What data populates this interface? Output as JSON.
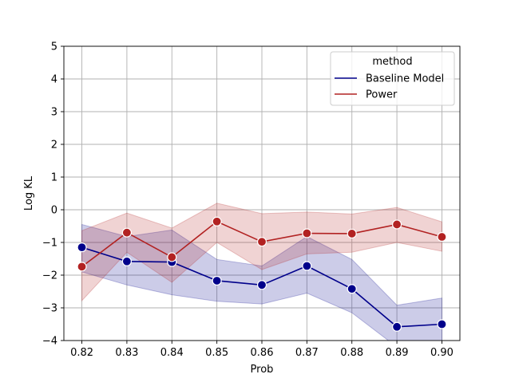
{
  "chart_data": {
    "type": "line",
    "title": "",
    "xlabel": "Prob",
    "ylabel": "Log KL",
    "x": [
      0.82,
      0.83,
      0.84,
      0.85,
      0.86,
      0.87,
      0.88,
      0.89,
      0.9
    ],
    "x_tick_labels": [
      "0.82",
      "0.83",
      "0.84",
      "0.85",
      "0.86",
      "0.87",
      "0.88",
      "0.89",
      "0.90"
    ],
    "xlim": [
      0.816,
      0.904
    ],
    "ylim": [
      -4,
      5
    ],
    "y_ticks": [
      -4,
      -3,
      -2,
      -1,
      0,
      1,
      2,
      3,
      4,
      5
    ],
    "y_tick_labels": [
      "−4",
      "−3",
      "−2",
      "−1",
      "0",
      "1",
      "2",
      "3",
      "4",
      "5"
    ],
    "grid": true,
    "legend": {
      "title": "method",
      "position": "top-right"
    },
    "series": [
      {
        "name": "Baseline Model",
        "color": "#00008b",
        "band_color": "#00008b",
        "values": [
          -1.15,
          -1.58,
          -1.6,
          -2.17,
          -2.3,
          -1.72,
          -2.42,
          -3.58,
          -3.5
        ],
        "lower": [
          -1.9,
          -2.3,
          -2.6,
          -2.8,
          -2.88,
          -2.55,
          -3.15,
          -4.2,
          -4.2
        ],
        "upper": [
          -0.45,
          -0.82,
          -0.62,
          -1.52,
          -1.72,
          -0.82,
          -1.52,
          -2.92,
          -2.7
        ]
      },
      {
        "name": "Power",
        "color": "#b22222",
        "band_color": "#b22222",
        "values": [
          -1.74,
          -0.7,
          -1.45,
          -0.36,
          -0.98,
          -0.72,
          -0.73,
          -0.45,
          -0.83
        ],
        "lower": [
          -2.78,
          -1.3,
          -2.22,
          -1.0,
          -1.83,
          -1.35,
          -1.3,
          -1.0,
          -1.27
        ],
        "upper": [
          -0.64,
          -0.1,
          -0.56,
          0.2,
          -0.12,
          -0.07,
          -0.13,
          0.07,
          -0.37
        ]
      }
    ]
  }
}
